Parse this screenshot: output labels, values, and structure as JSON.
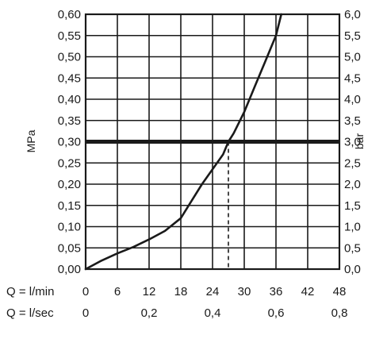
{
  "chart_data": {
    "type": "line",
    "title": "",
    "ylabel_left": "MPa",
    "ylabel_right": "bar",
    "xlabel_lmin": "Q = l/min",
    "xlabel_lsec": "Q = l/sec",
    "xlim": [
      0,
      48
    ],
    "ylim": [
      0,
      0.6
    ],
    "grid": true,
    "left_ticks": [
      "0,00",
      "0,05",
      "0,10",
      "0,15",
      "0,20",
      "0,25",
      "0,30",
      "0,35",
      "0,40",
      "0,45",
      "0,50",
      "0,55",
      "0,60"
    ],
    "right_ticks": [
      "0,0",
      "0,5",
      "1,0",
      "1,5",
      "2,0",
      "2,5",
      "3,0",
      "3,5",
      "4,0",
      "4,5",
      "5,0",
      "5,5",
      "6,0"
    ],
    "x_ticks_lmin": [
      {
        "value": 0,
        "label": "0"
      },
      {
        "value": 6,
        "label": "6"
      },
      {
        "value": 12,
        "label": "12"
      },
      {
        "value": 18,
        "label": "18"
      },
      {
        "value": 24,
        "label": "24"
      },
      {
        "value": 30,
        "label": "30"
      },
      {
        "value": 36,
        "label": "36"
      },
      {
        "value": 42,
        "label": "42"
      },
      {
        "value": 48,
        "label": "48"
      }
    ],
    "x_ticks_lsec": [
      {
        "value": 0,
        "label": "0"
      },
      {
        "value": 12,
        "label": "0,2"
      },
      {
        "value": 24,
        "label": "0,4"
      },
      {
        "value": 36,
        "label": "0,6"
      },
      {
        "value": 48,
        "label": "0,8"
      }
    ],
    "series": [
      {
        "x": [
          0,
          3,
          6,
          9,
          12,
          15,
          18,
          20,
          22,
          24,
          26,
          27,
          28,
          30,
          32,
          34,
          36,
          37
        ],
        "y": [
          0.0,
          0.02,
          0.037,
          0.052,
          0.07,
          0.09,
          0.12,
          0.16,
          0.2,
          0.235,
          0.27,
          0.3,
          0.32,
          0.37,
          0.43,
          0.49,
          0.55,
          0.6
        ]
      }
    ],
    "reference_line_y": 0.3,
    "marker_x": 27,
    "colors": {
      "line": "#1a1a1a",
      "grid": "#1a1a1a",
      "reference": "#1a1a1a"
    }
  }
}
